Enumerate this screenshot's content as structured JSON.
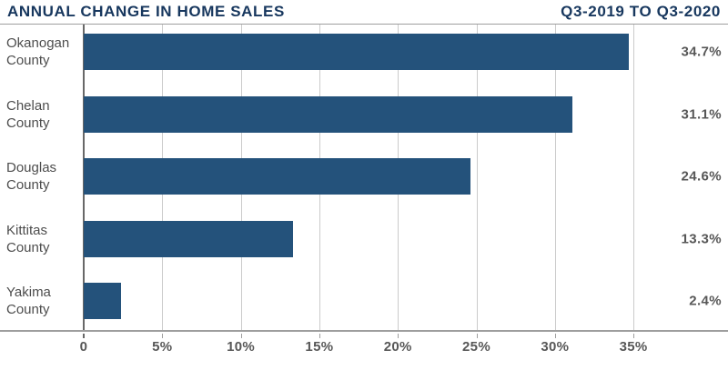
{
  "header": {
    "title_left": "ANNUAL CHANGE IN HOME SALES",
    "title_right": "Q3-2019 TO Q3-2020"
  },
  "chart_data": {
    "type": "bar",
    "orientation": "horizontal",
    "title": "ANNUAL CHANGE IN HOME SALES",
    "subtitle": "Q3-2019 TO Q3-2020",
    "categories": [
      "Okanogan County",
      "Chelan County",
      "Douglas County",
      "Kittitas County",
      "Yakima County"
    ],
    "values": [
      34.7,
      31.1,
      24.6,
      13.3,
      2.4
    ],
    "value_labels": [
      "34.7%",
      "31.1%",
      "24.6%",
      "13.3%",
      "2.4%"
    ],
    "xlabel": "",
    "ylabel": "",
    "xlim": [
      0,
      40
    ],
    "x_ticks": [
      0,
      5,
      10,
      15,
      20,
      25,
      30,
      35
    ],
    "x_tick_labels": [
      "0",
      "5%",
      "10%",
      "15%",
      "20%",
      "25%",
      "30%",
      "35%"
    ],
    "grid": true,
    "legend": "none",
    "theme": {
      "bar_color": "#24527B",
      "title_color": "#17375E",
      "category_label_color": "#4D4D4D",
      "value_label_color": "#575757",
      "gridline_color": "#CBCBCB",
      "zero_line_color": "#686868",
      "axis_line_color": "#9E9E9E",
      "background_color": "#FFFFFF"
    }
  }
}
